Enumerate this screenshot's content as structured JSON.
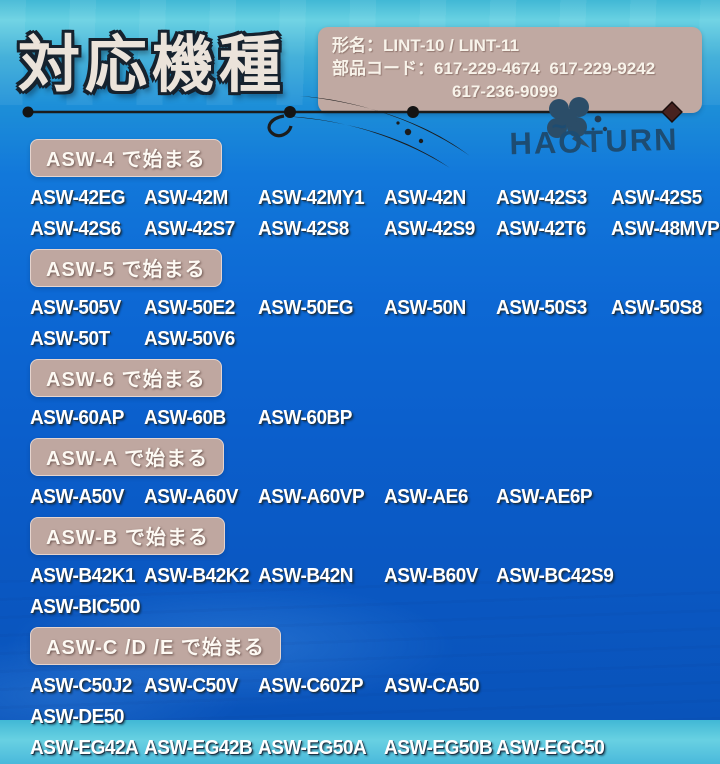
{
  "title": "対応機種",
  "info_box": {
    "model_name_line": "形名：LINT-10 / LINT-11",
    "part_code_line1": "部品コード：617-229-4674  617-229-9242",
    "part_code_line2": "617-236-9099"
  },
  "brand": {
    "name": "HAOTURN",
    "accent": "~",
    "logo_icon": "four-leaf-clover",
    "color": "#1d4c72"
  },
  "colors": {
    "background_top": "#54c6dc",
    "background_mid": "#0e6fd6",
    "background_bottom": "#0a55bd",
    "info_box": "#c0a9a2",
    "badge": "#bfa7a0",
    "title_text": "#ebe3da",
    "model_text": "#ffffff",
    "divider": "#1b1b1b"
  },
  "sections": [
    {
      "label": "ASW-4 で始まる",
      "rows": [
        [
          "ASW-42EG",
          "ASW-42M",
          "ASW-42MY1",
          "ASW-42N",
          "ASW-42S3",
          "ASW-42S5"
        ],
        [
          "ASW-42S6",
          "ASW-42S7",
          "ASW-42S8",
          "ASW-42S9",
          "ASW-42T6",
          "ASW-48MVP"
        ]
      ]
    },
    {
      "label": "ASW-5 で始まる",
      "rows": [
        [
          "ASW-505V",
          "ASW-50E2",
          "ASW-50EG",
          "ASW-50N",
          "ASW-50S3",
          "ASW-50S8"
        ],
        [
          "ASW-50T",
          "ASW-50V6"
        ]
      ]
    },
    {
      "label": "ASW-6 で始まる",
      "rows": [
        [
          "ASW-60AP",
          "ASW-60B",
          "ASW-60BP"
        ]
      ]
    },
    {
      "label": "ASW-A で始まる",
      "rows": [
        [
          "ASW-A50V",
          "ASW-A60V",
          "ASW-A60VP",
          "ASW-AE6",
          "ASW-AE6P"
        ]
      ]
    },
    {
      "label": "ASW-B で始まる",
      "rows": [
        [
          "ASW-B42K1",
          "ASW-B42K2",
          "ASW-B42N",
          "ASW-B60V",
          "ASW-BC42S9"
        ],
        [
          "ASW-BIC500"
        ]
      ]
    },
    {
      "label": "ASW-C /D /E で始まる",
      "rows": [
        [
          "ASW-C50J2",
          "ASW-C50V",
          "ASW-C60ZP",
          "ASW-CA50"
        ],
        [
          "ASW-DE50"
        ],
        [
          "ASW-EG42A",
          "ASW-EG42B",
          "ASW-EG50A",
          "ASW-EG50B",
          "ASW-EGC50"
        ]
      ]
    }
  ]
}
